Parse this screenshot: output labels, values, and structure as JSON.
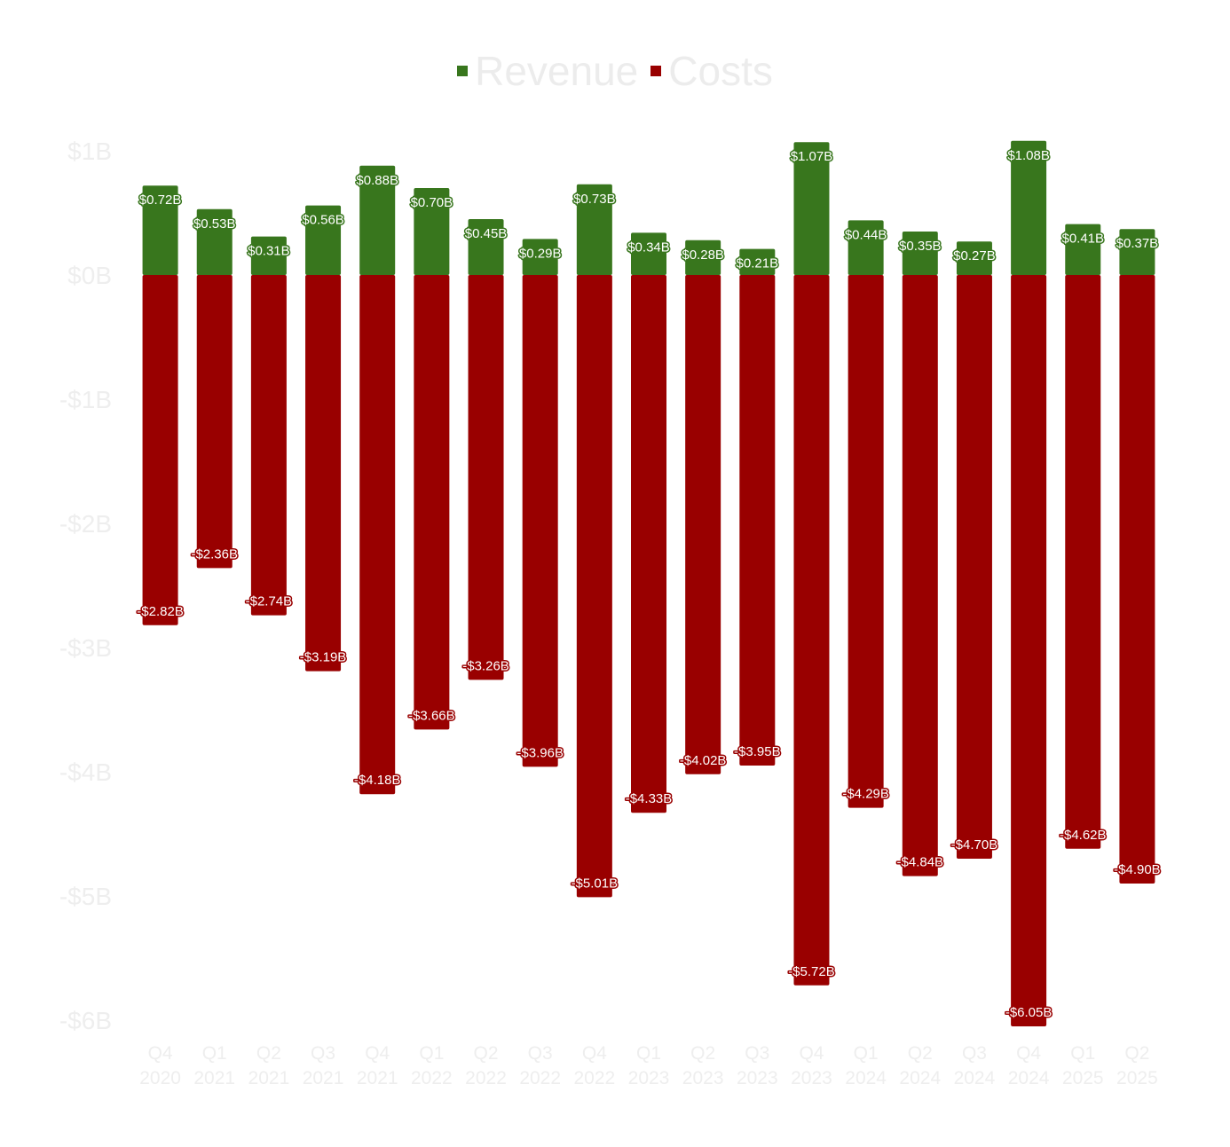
{
  "chart_data": {
    "type": "bar",
    "stacked": true,
    "legend_position": "top-center",
    "grid": false,
    "categories": [
      [
        "Q4",
        "2020"
      ],
      [
        "Q1",
        "2021"
      ],
      [
        "Q2",
        "2021"
      ],
      [
        "Q3",
        "2021"
      ],
      [
        "Q4",
        "2021"
      ],
      [
        "Q1",
        "2022"
      ],
      [
        "Q2",
        "2022"
      ],
      [
        "Q3",
        "2022"
      ],
      [
        "Q4",
        "2022"
      ],
      [
        "Q1",
        "2023"
      ],
      [
        "Q2",
        "2023"
      ],
      [
        "Q3",
        "2023"
      ],
      [
        "Q4",
        "2023"
      ],
      [
        "Q1",
        "2024"
      ],
      [
        "Q2",
        "2024"
      ],
      [
        "Q3",
        "2024"
      ],
      [
        "Q4",
        "2024"
      ],
      [
        "Q1",
        "2025"
      ],
      [
        "Q2",
        "2025"
      ]
    ],
    "series": [
      {
        "name": "Revenue",
        "color": "#38761d",
        "values": [
          0.72,
          0.53,
          0.31,
          0.56,
          0.88,
          0.7,
          0.45,
          0.29,
          0.73,
          0.34,
          0.28,
          0.21,
          1.07,
          0.44,
          0.35,
          0.27,
          1.08,
          0.41,
          0.37
        ],
        "labels": [
          "$0.72B",
          "$0.53B",
          "$0.31B",
          "$0.56B",
          "$0.88B",
          "$0.70B",
          "$0.45B",
          "$0.29B",
          "$0.73B",
          "$0.34B",
          "$0.28B",
          "$0.21B",
          "$1.07B",
          "$0.44B",
          "$0.35B",
          "$0.27B",
          "$1.08B",
          "$0.41B",
          "$0.37B"
        ]
      },
      {
        "name": "Costs",
        "color": "#990000",
        "values": [
          -2.82,
          -2.36,
          -2.74,
          -3.19,
          -4.18,
          -3.66,
          -3.26,
          -3.96,
          -5.01,
          -4.33,
          -4.02,
          -3.95,
          -5.72,
          -4.29,
          -4.84,
          -4.7,
          -6.05,
          -4.62,
          -4.9
        ],
        "labels": [
          "-$2.82B",
          "-$2.36B",
          "-$2.74B",
          "-$3.19B",
          "-$4.18B",
          "-$3.66B",
          "-$3.26B",
          "-$3.96B",
          "-$5.01B",
          "-$4.33B",
          "-$4.02B",
          "-$3.95B",
          "-$5.72B",
          "-$4.29B",
          "-$4.84B",
          "-$4.70B",
          "-$6.05B",
          "-$4.62B",
          "-$4.90B"
        ]
      }
    ],
    "ylim": [
      -6,
      1
    ],
    "yticks": [
      1,
      0,
      -1,
      -2,
      -3,
      -4,
      -5,
      -6
    ],
    "ytick_labels": [
      "$1B",
      "$0B",
      "-$1B",
      "-$2B",
      "-$3B",
      "-$4B",
      "-$5B",
      "-$6B"
    ],
    "title": "",
    "xlabel": "",
    "ylabel": ""
  }
}
